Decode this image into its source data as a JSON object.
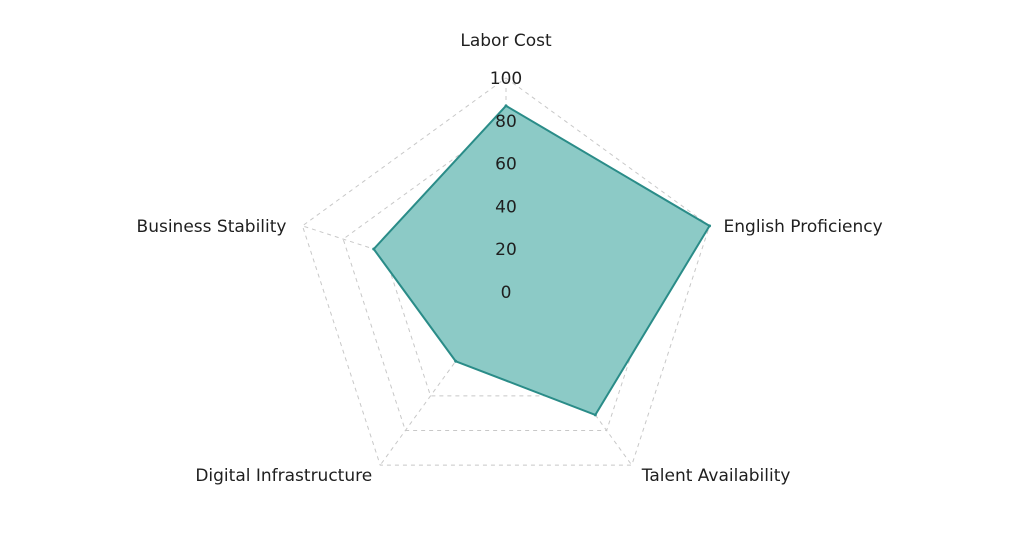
{
  "chart_data": {
    "type": "radar",
    "axes": [
      "Labor Cost",
      "English Proficiency",
      "Talent Availability",
      "Digital Infrastructure",
      "Business Stability"
    ],
    "series": [
      {
        "values": [
          87,
          100,
          71,
          40,
          65
        ]
      }
    ],
    "rlim": [
      0,
      100
    ],
    "tick_values": [
      0,
      20,
      40,
      60,
      80,
      100
    ],
    "tick_labels": [
      "0",
      "20",
      "40",
      "60",
      "80",
      "100"
    ],
    "grid": true,
    "colors": {
      "fill": "#8ccac6",
      "stroke": "#2a8c88",
      "grid": "#c8c8c8",
      "text": "#1f1f1f"
    }
  }
}
